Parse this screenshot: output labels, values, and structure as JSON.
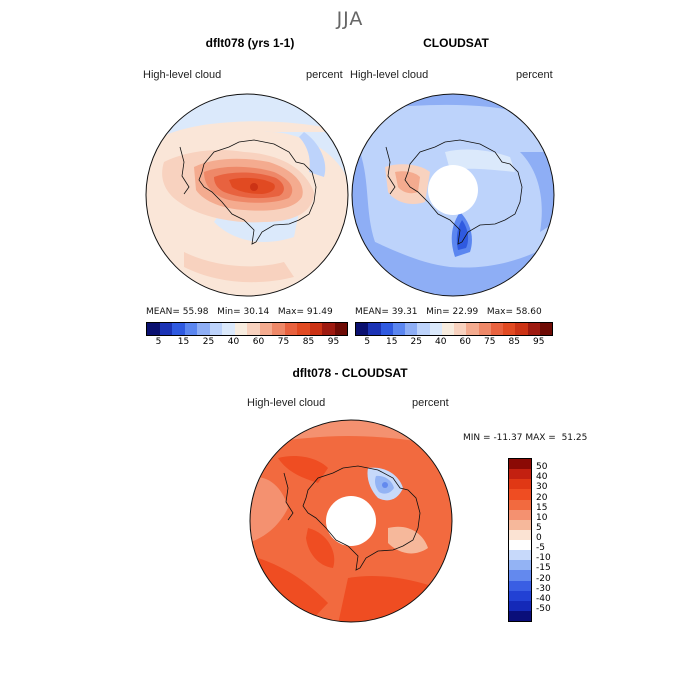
{
  "title": "JJA",
  "panels": [
    {
      "title": "dflt078 (yrs 1-1)",
      "variable": "High-level cloud",
      "units": "percent",
      "stats": {
        "mean_label": "MEAN=",
        "mean": "55.98",
        "min_label": "Min=",
        "min": "30.14",
        "max_label": "Max=",
        "max": "91.49"
      }
    },
    {
      "title": "CLOUDSAT",
      "variable": "High-level cloud",
      "units": "percent",
      "stats": {
        "mean_label": "MEAN=",
        "mean": "39.31",
        "min_label": "Min=",
        "min": "22.99",
        "max_label": "Max=",
        "max": "58.60"
      }
    }
  ],
  "colorbar_small": {
    "labels": [
      "5",
      "15",
      "25",
      "40",
      "60",
      "75",
      "85",
      "95"
    ],
    "colors": [
      "#0a1070",
      "#1b33b5",
      "#2f5ae0",
      "#5b86f0",
      "#8eaef5",
      "#bdd3fb",
      "#dbe9fb",
      "#f7ecdf",
      "#f8d2bf",
      "#f4ab8f",
      "#ee8868",
      "#e8623f",
      "#e14a22",
      "#cc3315",
      "#9e1a10",
      "#6e0b05"
    ]
  },
  "diff_panel": {
    "title": "dflt078 - CLOUDSAT",
    "variable": "High-level cloud",
    "units": "percent",
    "stats": {
      "min_label": "MIN =",
      "min": "-11.37",
      "max_label": "MAX =",
      "max": "51.25"
    }
  },
  "colorbar_diff": {
    "labels": [
      "50",
      "40",
      "30",
      "20",
      "15",
      "10",
      "5",
      "0",
      "-5",
      "-10",
      "-15",
      "-20",
      "-30",
      "-40",
      "-50"
    ],
    "colors": [
      "#8b0a05",
      "#c32010",
      "#e03815",
      "#ef4d22",
      "#f26a3f",
      "#f49170",
      "#f6b89b",
      "#fbe3d3",
      "#ffffff",
      "#c7d9fa",
      "#93b3f4",
      "#6389ee",
      "#3a5ee3",
      "#2241d4",
      "#1429b8",
      "#0a0e7a"
    ]
  },
  "colors": {
    "background": "#ffffff",
    "ocean_pale": "#fae6d8",
    "land_outline": "#111111"
  }
}
